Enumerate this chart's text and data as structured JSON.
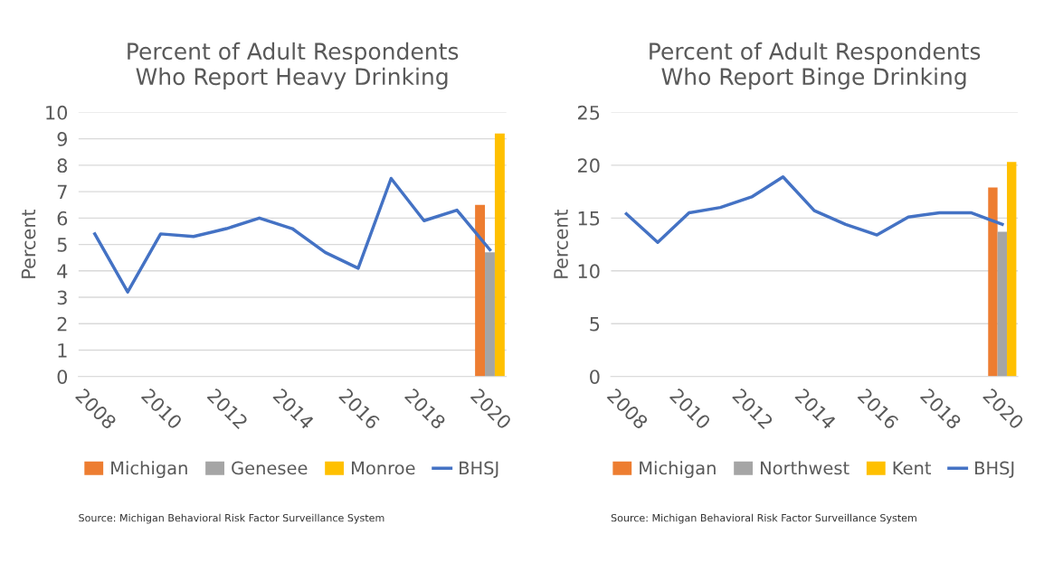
{
  "chart_data": [
    {
      "type": "bar",
      "title": "Percent of Adult Respondents\nWho Report Heavy Drinking",
      "ylabel": "Percent",
      "categories": [
        "2008",
        null,
        "2010",
        null,
        "2012",
        null,
        "2014",
        null,
        "2016",
        null,
        "2018",
        null,
        "2020"
      ],
      "series": [
        {
          "name": "Michigan",
          "color": "#ed7d31",
          "values": [
            null,
            null,
            null,
            null,
            null,
            null,
            null,
            null,
            null,
            null,
            null,
            null,
            6.5
          ]
        },
        {
          "name": "Genesee",
          "color": "#a5a5a5",
          "values": [
            null,
            null,
            null,
            null,
            null,
            null,
            null,
            null,
            null,
            null,
            null,
            null,
            4.7
          ]
        },
        {
          "name": "Monroe",
          "color": "#ffc000",
          "values": [
            null,
            null,
            null,
            null,
            null,
            null,
            null,
            null,
            null,
            null,
            null,
            null,
            9.2
          ]
        },
        {
          "name": "BHSJ",
          "type": "line",
          "color": "#4472c4",
          "values": [
            5.4,
            3.2,
            5.4,
            5.3,
            5.6,
            6.0,
            5.6,
            4.7,
            4.1,
            7.5,
            5.9,
            6.3,
            4.8
          ]
        }
      ],
      "ylim": [
        0,
        10
      ],
      "yticks": [
        0,
        1,
        2,
        3,
        4,
        5,
        6,
        7,
        8,
        9,
        10
      ],
      "grid": "y",
      "legend": "bottom",
      "annotations": [
        "Source: Michigan Behavioral Risk Factor Surveillance System"
      ]
    },
    {
      "type": "bar",
      "title": "Percent of Adult Respondents\nWho Report Binge Drinking",
      "ylabel": "Percent",
      "categories": [
        "2008",
        null,
        "2010",
        null,
        "2012",
        null,
        "2014",
        null,
        "2016",
        null,
        "2018",
        null,
        "2020"
      ],
      "series": [
        {
          "name": "Michigan",
          "color": "#ed7d31",
          "values": [
            null,
            null,
            null,
            null,
            null,
            null,
            null,
            null,
            null,
            null,
            null,
            null,
            17.9
          ]
        },
        {
          "name": "Northwest",
          "color": "#a5a5a5",
          "values": [
            null,
            null,
            null,
            null,
            null,
            null,
            null,
            null,
            null,
            null,
            null,
            null,
            13.7
          ]
        },
        {
          "name": "Kent",
          "color": "#ffc000",
          "values": [
            null,
            null,
            null,
            null,
            null,
            null,
            null,
            null,
            null,
            null,
            null,
            null,
            20.3
          ]
        },
        {
          "name": "BHSJ",
          "type": "line",
          "color": "#4472c4",
          "values": [
            15.4,
            12.7,
            15.5,
            16.0,
            17.0,
            18.9,
            15.7,
            14.4,
            13.4,
            15.1,
            15.5,
            15.5,
            14.4
          ]
        }
      ],
      "ylim": [
        0,
        25
      ],
      "yticks": [
        0,
        5,
        10,
        15,
        20,
        25
      ],
      "grid": "y",
      "legend": "bottom",
      "annotations": [
        "Source: Michigan Behavioral Risk Factor Surveillance System"
      ]
    }
  ]
}
